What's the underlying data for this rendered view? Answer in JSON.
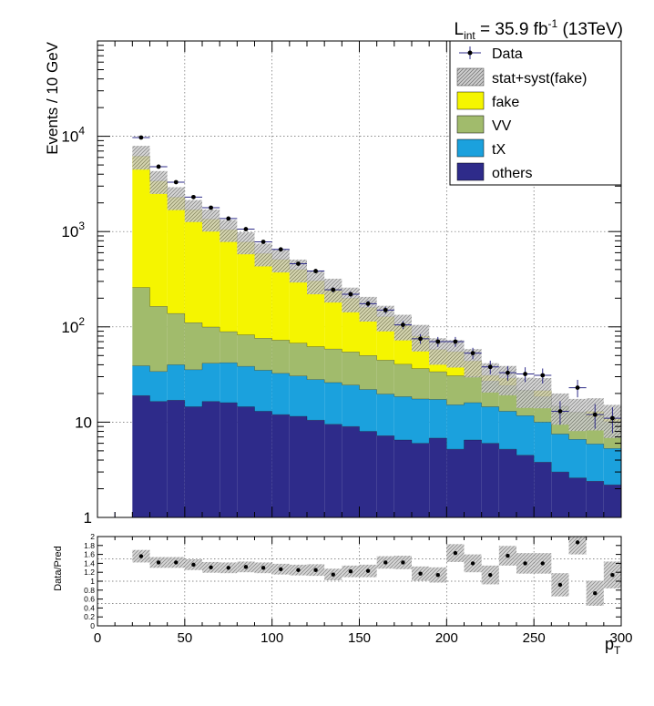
{
  "chart_data": {
    "type": "bar",
    "lumi_label": {
      "L": "L",
      "sub": "int",
      "mid": " = 35.9 fb",
      "sup": "-1",
      "tail": " (13TeV)"
    },
    "ylabel": "Events / 10 GeV",
    "xlabel": {
      "main": "p",
      "sub": "T"
    },
    "ratio_ylabel": "Data/Pred",
    "y_scale": "log",
    "ylim": [
      1,
      100000
    ],
    "xlim": [
      0,
      300
    ],
    "ratio_ylim": [
      0,
      2
    ],
    "grid": true,
    "legend_position": "top-right",
    "x_ticks": [
      "0",
      "50",
      "100",
      "150",
      "200",
      "250",
      "300"
    ],
    "y_ticks": [
      {
        "value": 1,
        "label": "1"
      },
      {
        "value": 10,
        "label": "10"
      },
      {
        "value": 100,
        "base": "10",
        "exp": "2"
      },
      {
        "value": 1000,
        "base": "10",
        "exp": "3"
      },
      {
        "value": 10000,
        "base": "10",
        "exp": "4"
      }
    ],
    "ratio_ticks": [
      "0",
      "0.2",
      "0.4",
      "0.6",
      "0.8",
      "1",
      "1.2",
      "1.4",
      "1.6",
      "1.8",
      "2"
    ],
    "legend": [
      {
        "key": "data",
        "label": "Data"
      },
      {
        "key": "unc",
        "label": "stat+syst(fake)"
      },
      {
        "key": "fake",
        "label": "fake"
      },
      {
        "key": "vv",
        "label": "VV"
      },
      {
        "key": "tx",
        "label": "tX"
      },
      {
        "key": "others",
        "label": "others"
      }
    ],
    "colors": {
      "fake": "#f5f500",
      "vv": "#a1bb6c",
      "tx": "#1ba1dd",
      "others": "#2e2b8a",
      "data": "#000000",
      "unc": "#b8b8b8"
    },
    "bin_low_edges": [
      20,
      30,
      40,
      50,
      60,
      70,
      80,
      90,
      100,
      110,
      120,
      130,
      140,
      150,
      160,
      170,
      180,
      190,
      200,
      210,
      220,
      230,
      240,
      250,
      260,
      270,
      280,
      290
    ],
    "bin_width": 10,
    "series": [
      {
        "name": "others",
        "values": [
          19,
          16.5,
          17,
          14.5,
          16.5,
          16,
          14.5,
          13,
          12,
          11.5,
          10.5,
          9.5,
          9,
          8,
          7.2,
          6.5,
          6,
          6.8,
          5.2,
          6.5,
          6,
          5.2,
          4.5,
          3.8,
          3,
          2.6,
          2.4,
          2.2
        ]
      },
      {
        "name": "tX",
        "values": [
          20,
          17.5,
          23,
          21,
          25,
          26,
          24,
          22,
          20.5,
          19,
          17.5,
          16.5,
          15.5,
          14,
          12.5,
          12,
          11.5,
          10.5,
          10,
          9.5,
          8.5,
          7.8,
          7.2,
          6.2,
          4.5,
          4,
          3.5,
          3.1
        ]
      },
      {
        "name": "VV",
        "values": [
          220,
          130,
          98,
          75,
          58,
          47,
          44,
          41,
          40,
          37,
          34,
          32.5,
          30,
          28,
          25,
          22,
          19,
          16.5,
          15.5,
          14,
          12.5,
          11.2,
          10,
          8.5,
          7.2,
          6.2,
          5.5,
          4.8
        ]
      },
      {
        "name": "fake",
        "values": [
          6200,
          3400,
          2300,
          1700,
          1350,
          1050,
          780,
          590,
          510,
          400,
          305,
          250,
          200,
          160,
          128,
          103,
          80,
          58,
          55,
          44,
          31,
          29,
          20,
          21.5,
          14.5,
          12,
          13,
          11
        ]
      },
      {
        "name": "stat+syst(fake)",
        "values": [
          6200,
          3400,
          2300,
          1700,
          1350,
          1050,
          780,
          590,
          510,
          400,
          305,
          250,
          200,
          160,
          128,
          103,
          80,
          58,
          55,
          44,
          31,
          29,
          20,
          21.5,
          14.5,
          12,
          13,
          11
        ],
        "rel_unc": [
          0.28,
          0.27,
          0.27,
          0.26,
          0.26,
          0.26,
          0.26,
          0.27,
          0.27,
          0.27,
          0.28,
          0.28,
          0.29,
          0.29,
          0.3,
          0.3,
          0.31,
          0.31,
          0.32,
          0.33,
          0.34,
          0.34,
          0.35,
          0.35,
          0.36,
          0.37,
          0.37,
          0.38
        ]
      },
      {
        "name": "Data",
        "x": [
          25,
          35,
          45,
          55,
          65,
          75,
          85,
          95,
          105,
          115,
          125,
          135,
          145,
          155,
          165,
          175,
          185,
          195,
          205,
          215,
          225,
          235,
          245,
          255,
          265,
          275,
          285,
          295
        ],
        "values": [
          9700,
          4800,
          3300,
          2300,
          1780,
          1370,
          1060,
          780,
          650,
          460,
          385,
          245,
          220,
          175,
          150,
          105,
          75,
          70,
          70,
          53,
          38,
          33,
          32,
          31,
          13,
          23,
          12,
          11
        ]
      }
    ],
    "ratio": {
      "x": [
        25,
        35,
        45,
        55,
        65,
        75,
        85,
        95,
        105,
        115,
        125,
        135,
        145,
        155,
        165,
        175,
        185,
        195,
        205,
        215,
        225,
        235,
        245,
        255,
        265,
        275,
        285,
        295
      ],
      "values": [
        1.56,
        1.42,
        1.42,
        1.37,
        1.31,
        1.3,
        1.32,
        1.3,
        1.27,
        1.25,
        1.25,
        1.15,
        1.22,
        1.23,
        1.42,
        1.42,
        1.17,
        1.14,
        1.63,
        1.4,
        1.14,
        1.57,
        1.4,
        1.4,
        0.92,
        1.87,
        0.73,
        1.14
      ],
      "unc": [
        0.14,
        0.12,
        0.12,
        0.12,
        0.12,
        0.12,
        0.12,
        0.12,
        0.12,
        0.12,
        0.13,
        0.13,
        0.13,
        0.14,
        0.14,
        0.15,
        0.16,
        0.17,
        0.2,
        0.2,
        0.21,
        0.22,
        0.23,
        0.23,
        0.26,
        0.27,
        0.28,
        0.3
      ]
    }
  }
}
